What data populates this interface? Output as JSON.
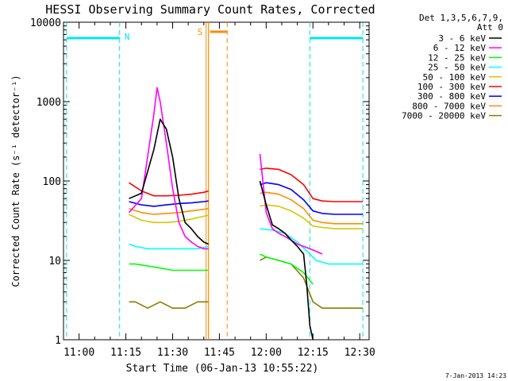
{
  "title": "HESSI Observing Summary Count Rates, Corrected",
  "xlabel": "Start Time (06-Jan-13 10:55:22)",
  "ylabel": "Corrected Count Rate (s⁻¹ detector⁻¹)",
  "timestamp": "7-Jan-2013 14:23",
  "legend": {
    "header_line1": "Det 1,3,5,6,7,9,",
    "header_line2": "Att 0"
  },
  "chart_data": {
    "type": "line",
    "title": "HESSI Observing Summary Count Rates, Corrected",
    "xlabel": "Start Time (06-Jan-13 10:55:22)",
    "ylabel": "Corrected Count Rate (s⁻¹ detector⁻¹)",
    "y_scale": "log",
    "ylim": [
      1,
      10000
    ],
    "xlim": [
      "10:55",
      "12:33"
    ],
    "x_ticks": [
      "11:00",
      "11:15",
      "11:30",
      "11:45",
      "12:00",
      "12:15",
      "12:30"
    ],
    "y_ticks": [
      "1",
      "10",
      "100",
      "1000",
      "10000"
    ],
    "grid": false,
    "legend_position": "outside-right",
    "series": [
      {
        "name": "3 - 6 keV",
        "color": "#000000",
        "x": [
          "11:16",
          "11:20",
          "11:24",
          "11:26",
          "11:28",
          "11:30",
          "11:32",
          "11:34",
          "11:36",
          "11:38",
          "11:40",
          "11:41.5",
          "11:58",
          "12:00",
          "12:02",
          "12:04",
          "12:06",
          "12:08",
          "12:10",
          "12:12",
          "12:13",
          "12:14",
          "12:15"
        ],
        "y": [
          60,
          70,
          250,
          600,
          450,
          200,
          60,
          30,
          25,
          20,
          17,
          16,
          100,
          50,
          28,
          25,
          22,
          18,
          15,
          12,
          5,
          1.5,
          1
        ]
      },
      {
        "name": "6 - 12 keV",
        "color": "#ff00ff",
        "x": [
          "11:16",
          "11:20",
          "11:24",
          "11:25",
          "11:26",
          "11:28",
          "11:30",
          "11:32",
          "11:34",
          "11:36",
          "11:38",
          "11:40",
          "11:41.5",
          "11:58",
          "12:00",
          "12:02",
          "12:04",
          "12:06",
          "12:08",
          "12:10",
          "12:12",
          "12:14",
          "12:16",
          "12:18"
        ],
        "y": [
          40,
          60,
          700,
          1500,
          1000,
          300,
          80,
          30,
          20,
          17,
          15,
          14,
          14,
          220,
          40,
          25,
          22,
          20,
          18,
          16,
          15,
          14,
          13,
          12
        ]
      },
      {
        "name": "12 - 25 keV",
        "color": "#00ff00",
        "x": [
          "11:16",
          "11:18",
          "11:22",
          "11:26",
          "11:30",
          "11:34",
          "11:38",
          "11:41.5",
          "11:58",
          "12:00",
          "12:04",
          "12:08",
          "12:12",
          "12:15"
        ],
        "y": [
          9,
          9,
          8.5,
          8,
          7.5,
          7.5,
          7.5,
          7.5,
          12,
          11,
          10,
          9,
          7,
          5
        ]
      },
      {
        "name": "25 - 50 keV",
        "color": "#00ffff",
        "x": [
          "11:16",
          "11:18",
          "11:22",
          "11:26",
          "11:30",
          "11:34",
          "11:38",
          "11:41.5",
          "11:58",
          "12:02",
          "12:06",
          "12:10",
          "12:14",
          "12:16",
          "12:20",
          "12:24",
          "12:28",
          "12:31"
        ],
        "y": [
          16,
          15,
          14,
          14,
          14,
          14,
          14,
          15,
          25,
          24,
          22,
          17,
          12,
          10,
          9,
          9,
          9,
          9
        ]
      },
      {
        "name": "50 - 100 keV",
        "color": "#d4c800",
        "x": [
          "11:16",
          "11:20",
          "11:24",
          "11:28",
          "11:32",
          "11:36",
          "11:40",
          "11:41.5",
          "11:58",
          "12:00",
          "12:04",
          "12:08",
          "12:12",
          "12:15",
          "12:18",
          "12:22",
          "12:26",
          "12:31"
        ],
        "y": [
          38,
          32,
          30,
          30,
          31,
          33,
          36,
          37,
          48,
          50,
          48,
          42,
          34,
          27,
          26,
          25,
          25,
          25
        ]
      },
      {
        "name": "100 - 300 keV",
        "color": "#ff0000",
        "x": [
          "11:16",
          "11:20",
          "11:24",
          "11:28",
          "11:32",
          "11:36",
          "11:40",
          "11:41.5",
          "11:58",
          "12:00",
          "12:04",
          "12:08",
          "12:12",
          "12:15",
          "12:18",
          "12:22",
          "12:26",
          "12:31"
        ],
        "y": [
          95,
          75,
          65,
          65,
          66,
          68,
          72,
          75,
          140,
          145,
          140,
          120,
          90,
          60,
          56,
          55,
          55,
          55
        ]
      },
      {
        "name": "300 - 800 keV",
        "color": "#0000ff",
        "x": [
          "11:16",
          "11:20",
          "11:24",
          "11:28",
          "11:32",
          "11:36",
          "11:40",
          "11:41.5",
          "11:58",
          "12:00",
          "12:04",
          "12:08",
          "12:12",
          "12:15",
          "12:18",
          "12:22",
          "12:26",
          "12:31"
        ],
        "y": [
          55,
          50,
          48,
          50,
          52,
          53,
          55,
          56,
          90,
          95,
          90,
          78,
          58,
          42,
          39,
          38,
          38,
          38
        ]
      },
      {
        "name": "800 - 7000 keV",
        "color": "#ff8c00",
        "x": [
          "11:16",
          "11:20",
          "11:24",
          "11:28",
          "11:32",
          "11:36",
          "11:40",
          "11:41.5",
          "11:58",
          "12:00",
          "12:04",
          "12:08",
          "12:12",
          "12:15",
          "12:18",
          "12:22",
          "12:26",
          "12:31"
        ],
        "y": [
          45,
          40,
          38,
          39,
          40,
          42,
          44,
          45,
          70,
          72,
          68,
          58,
          45,
          32,
          30,
          29,
          29,
          29
        ]
      },
      {
        "name": "7000 - 20000 keV",
        "color": "#8b7d00",
        "x": [
          "11:16",
          "11:18",
          "11:22",
          "11:26",
          "11:30",
          "11:34",
          "11:38",
          "11:41.5",
          "11:58",
          "12:00",
          "12:04",
          "12:08",
          "12:12",
          "12:15",
          "12:18",
          "12:22",
          "12:26",
          "12:31"
        ],
        "y": [
          3,
          3,
          2.5,
          3,
          2.5,
          2.5,
          3,
          3,
          10,
          11,
          10,
          9,
          6,
          3,
          2.5,
          2.5,
          2.5,
          2.5
        ]
      }
    ],
    "flags": {
      "night": {
        "label": "N",
        "color": "#00e5ee",
        "boundaries": [
          "10:56",
          "11:13",
          "12:14",
          "12:31"
        ]
      },
      "saa": {
        "label": "S",
        "color": "#ff8c00",
        "boundaries": [
          "11:41.5",
          "11:47.5"
        ],
        "bar": [
          "11:42",
          "11:47.5"
        ]
      }
    }
  }
}
